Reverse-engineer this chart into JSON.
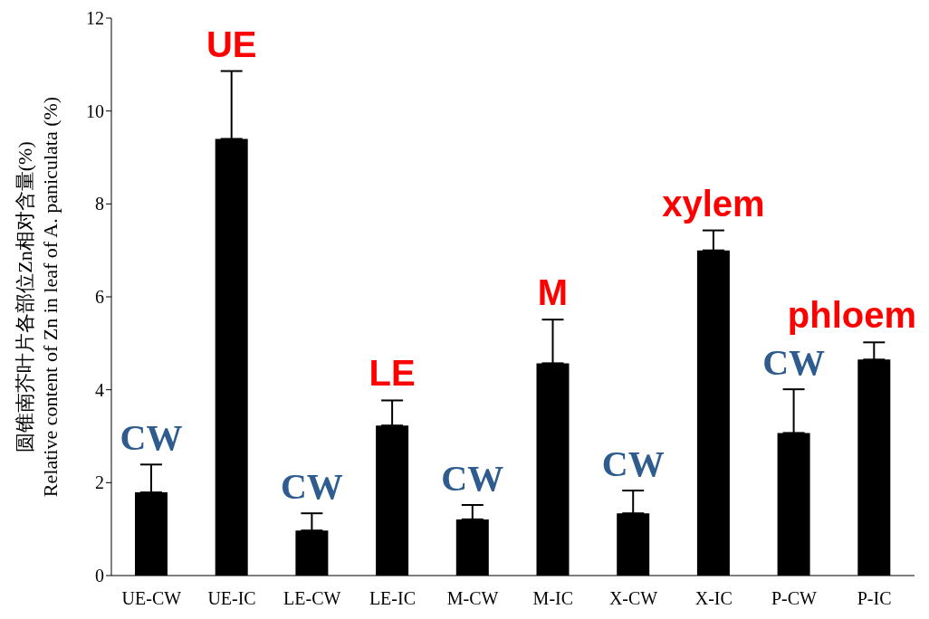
{
  "chart_data": {
    "type": "bar",
    "ylabel": "圆锥南芥叶片各部位Zn相对含量(%)\nRelative content of Zn in leaf of A. paniculata (%)",
    "categories": [
      "UE-CW",
      "UE-IC",
      "LE-CW",
      "LE-IC",
      "M-CW",
      "M-IC",
      "X-CW",
      "X-IC",
      "P-CW",
      "P-IC"
    ],
    "values": [
      1.79,
      9.4,
      0.97,
      3.23,
      1.21,
      4.57,
      1.34,
      7.0,
      3.07,
      4.65
    ],
    "errors": [
      [
        1.79,
        2.39
      ],
      [
        9.4,
        10.86
      ],
      [
        0.97,
        1.34
      ],
      [
        3.23,
        3.77
      ],
      [
        1.21,
        1.52
      ],
      [
        4.57,
        5.51
      ],
      [
        1.34,
        1.83
      ],
      [
        7.0,
        7.43
      ],
      [
        3.07,
        4.01
      ],
      [
        4.65,
        5.02
      ]
    ],
    "color": "#000000",
    "ylim": [
      0,
      12
    ],
    "yticks": [
      0,
      2,
      4,
      6,
      8,
      10,
      12
    ],
    "grid": false,
    "annotations": [
      "CW",
      "UE",
      "CW",
      "LE",
      "CW",
      "M",
      "CW",
      "xylem",
      "CW",
      "phloem"
    ]
  }
}
